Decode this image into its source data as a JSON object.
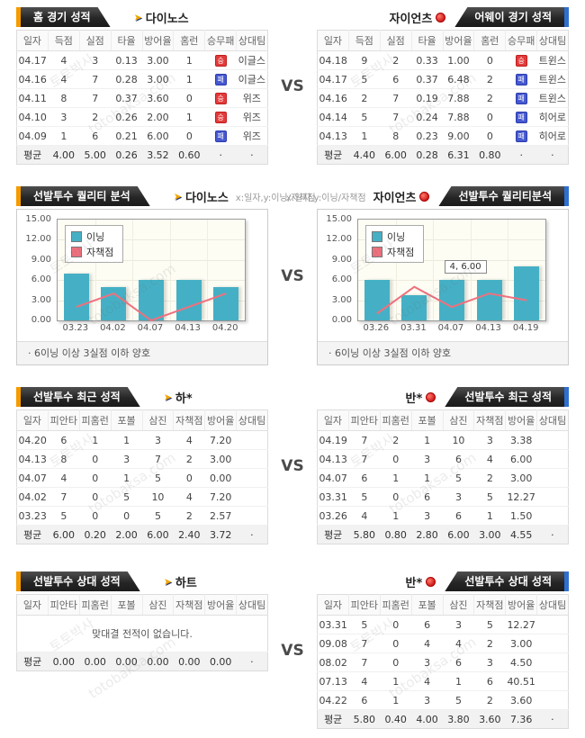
{
  "page": {
    "vs": "VS",
    "watermarks": {
      "kr": "토토박사",
      "en": "totobaksa.com"
    }
  },
  "badges": {
    "win": "승",
    "loss": "패",
    "win_color": "#e23b3b",
    "loss_color": "#4659cf"
  },
  "sections": [
    {
      "type": "table",
      "left": {
        "tab": "홈 경기 성적",
        "team": "다이노스",
        "team_icon": "dinos",
        "table": {
          "columns": [
            "일자",
            "득점",
            "실점",
            "타율",
            "방어율",
            "홈런",
            "승무패",
            "상대팀"
          ],
          "rows": [
            [
              "04.17",
              "4",
              "3",
              "0.13",
              "3.00",
              "1",
              "승",
              "이글스"
            ],
            [
              "04.16",
              "4",
              "7",
              "0.28",
              "3.00",
              "1",
              "패",
              "이글스"
            ],
            [
              "04.11",
              "8",
              "7",
              "0.37",
              "3.60",
              "0",
              "승",
              "위즈"
            ],
            [
              "04.10",
              "3",
              "2",
              "0.26",
              "2.00",
              "1",
              "승",
              "위즈"
            ],
            [
              "04.09",
              "1",
              "6",
              "0.21",
              "6.00",
              "0",
              "패",
              "위즈"
            ]
          ],
          "avg": [
            "평균",
            "4.00",
            "5.00",
            "0.26",
            "3.52",
            "0.60",
            "·",
            "·"
          ]
        }
      },
      "right": {
        "tab": "어웨이 경기 성적",
        "team": "자이언츠",
        "team_icon": "giants",
        "table": {
          "columns": [
            "일자",
            "득점",
            "실점",
            "타율",
            "방어율",
            "홈런",
            "승무패",
            "상대팀"
          ],
          "rows": [
            [
              "04.18",
              "9",
              "2",
              "0.33",
              "1.00",
              "0",
              "승",
              "트윈스"
            ],
            [
              "04.17",
              "5",
              "6",
              "0.37",
              "6.48",
              "2",
              "패",
              "트윈스"
            ],
            [
              "04.16",
              "2",
              "7",
              "0.19",
              "7.88",
              "2",
              "패",
              "트윈스"
            ],
            [
              "04.14",
              "5",
              "7",
              "0.24",
              "7.88",
              "0",
              "패",
              "히어로"
            ],
            [
              "04.13",
              "1",
              "8",
              "0.23",
              "9.00",
              "0",
              "패",
              "히어로"
            ]
          ],
          "avg": [
            "평균",
            "4.40",
            "6.00",
            "0.28",
            "6.31",
            "0.80",
            "·",
            "·"
          ]
        }
      }
    },
    {
      "type": "chart",
      "left": {
        "tab": "선발투수 퀄리티 분석",
        "team": "다이노스",
        "team_icon": "dinos",
        "axis_note": "x:일자,y:이닝/자책점",
        "chart": 0
      },
      "right": {
        "tab": "선발투수 퀄리티분석",
        "team": "자이언츠",
        "team_icon": "giants",
        "axis_note": "x:일자,y:이닝/자책점",
        "chart": 1
      }
    },
    {
      "type": "table",
      "left": {
        "tab": "선발투수 최근 성적",
        "team": "하*",
        "team_icon": "dinos",
        "table": {
          "columns": [
            "일자",
            "피안타",
            "피홈런",
            "포볼",
            "삼진",
            "자책점",
            "방어율",
            "상대팀"
          ],
          "rows": [
            [
              "04.20",
              "6",
              "1",
              "1",
              "3",
              "4",
              "7.20",
              ""
            ],
            [
              "04.13",
              "8",
              "0",
              "3",
              "7",
              "2",
              "3.00",
              ""
            ],
            [
              "04.07",
              "4",
              "0",
              "1",
              "5",
              "0",
              "0.00",
              ""
            ],
            [
              "04.02",
              "7",
              "0",
              "5",
              "10",
              "4",
              "7.20",
              ""
            ],
            [
              "03.23",
              "5",
              "0",
              "0",
              "5",
              "2",
              "2.57",
              ""
            ]
          ],
          "avg": [
            "평균",
            "6.00",
            "0.20",
            "2.00",
            "6.00",
            "2.40",
            "3.72",
            "·"
          ]
        }
      },
      "right": {
        "tab": "선발투수 최근 성적",
        "team": "반*",
        "team_icon": "giants",
        "table": {
          "columns": [
            "일자",
            "피안타",
            "피홈런",
            "포볼",
            "삼진",
            "자책점",
            "방어율",
            "상대팀"
          ],
          "rows": [
            [
              "04.19",
              "7",
              "2",
              "1",
              "10",
              "3",
              "3.38",
              ""
            ],
            [
              "04.13",
              "7",
              "0",
              "3",
              "6",
              "4",
              "6.00",
              ""
            ],
            [
              "04.07",
              "6",
              "1",
              "1",
              "5",
              "2",
              "3.00",
              ""
            ],
            [
              "03.31",
              "5",
              "0",
              "6",
              "3",
              "5",
              "12.27",
              ""
            ],
            [
              "03.26",
              "4",
              "1",
              "3",
              "6",
              "1",
              "1.50",
              ""
            ]
          ],
          "avg": [
            "평균",
            "5.80",
            "0.80",
            "2.80",
            "6.00",
            "3.00",
            "4.55",
            "·"
          ]
        }
      }
    },
    {
      "type": "table",
      "left": {
        "tab": "선발투수 상대 성적",
        "team": "하트",
        "team_icon": "dinos",
        "table": {
          "columns": [
            "일자",
            "피안타",
            "피홈런",
            "포볼",
            "삼진",
            "자책점",
            "방어율",
            "상대팀"
          ],
          "rows": [],
          "message": "맞대결 전적이 없습니다.",
          "avg": [
            "평균",
            "0.00",
            "0.00",
            "0.00",
            "0.00",
            "0.00",
            "0.00",
            "·"
          ]
        }
      },
      "right": {
        "tab": "선발투수 상대 성적",
        "team": "반*",
        "team_icon": "giants",
        "table": {
          "columns": [
            "일자",
            "피안타",
            "피홈런",
            "포볼",
            "삼진",
            "자책점",
            "방어율",
            "상대팀"
          ],
          "rows": [
            [
              "03.31",
              "5",
              "0",
              "6",
              "3",
              "5",
              "12.27",
              ""
            ],
            [
              "09.08",
              "7",
              "0",
              "4",
              "4",
              "2",
              "3.00",
              ""
            ],
            [
              "08.02",
              "7",
              "0",
              "3",
              "6",
              "3",
              "4.50",
              ""
            ],
            [
              "07.13",
              "4",
              "1",
              "4",
              "1",
              "6",
              "40.51",
              ""
            ],
            [
              "04.22",
              "6",
              "1",
              "3",
              "5",
              "2",
              "3.60",
              ""
            ]
          ],
          "avg": [
            "평균",
            "5.80",
            "0.40",
            "4.00",
            "3.80",
            "3.60",
            "7.36",
            "·"
          ]
        }
      }
    }
  ],
  "chart_data": [
    {
      "type": "bar",
      "title": "선발투수 퀄리티 분석",
      "team": "다이노스",
      "xlabel": "일자",
      "ylabel": "이닝/자책점",
      "categories": [
        "03.23",
        "04.02",
        "04.07",
        "04.13",
        "04.20"
      ],
      "series": [
        {
          "name": "이닝",
          "type": "bar",
          "color": "#45b0c5",
          "values": [
            7,
            5,
            6,
            6,
            5
          ]
        },
        {
          "name": "자책점",
          "type": "line",
          "color": "#f0707e",
          "values": [
            2,
            4,
            0,
            2,
            4
          ]
        }
      ],
      "ylim": [
        0,
        15
      ],
      "ytick_labels": [
        "15.00",
        "12.00",
        "9.00",
        "6.00",
        "3.00",
        "0.00"
      ],
      "grid": true,
      "legend_position": "top-left",
      "note": "·  6이닝 이상 3실점 이하 양호"
    },
    {
      "type": "bar",
      "title": "선발투수 퀄리티분석",
      "team": "자이언츠",
      "xlabel": "일자",
      "ylabel": "이닝/자책점",
      "categories": [
        "03.26",
        "03.31",
        "04.07",
        "04.13",
        "04.19"
      ],
      "series": [
        {
          "name": "이닝",
          "type": "bar",
          "color": "#45b0c5",
          "values": [
            6,
            3.7,
            6,
            6,
            8
          ]
        },
        {
          "name": "자책점",
          "type": "line",
          "color": "#f0707e",
          "values": [
            1,
            5,
            2,
            4,
            3
          ]
        }
      ],
      "ylim": [
        0,
        15
      ],
      "ytick_labels": [
        "15.00",
        "12.00",
        "9.00",
        "6.00",
        "3.00",
        "0.00"
      ],
      "grid": true,
      "legend_position": "top-left",
      "tooltip": {
        "text": "4, 6.00",
        "index": 3,
        "value": 6
      },
      "note": "·  6이닝 이상 3실점 이하 양호"
    }
  ]
}
